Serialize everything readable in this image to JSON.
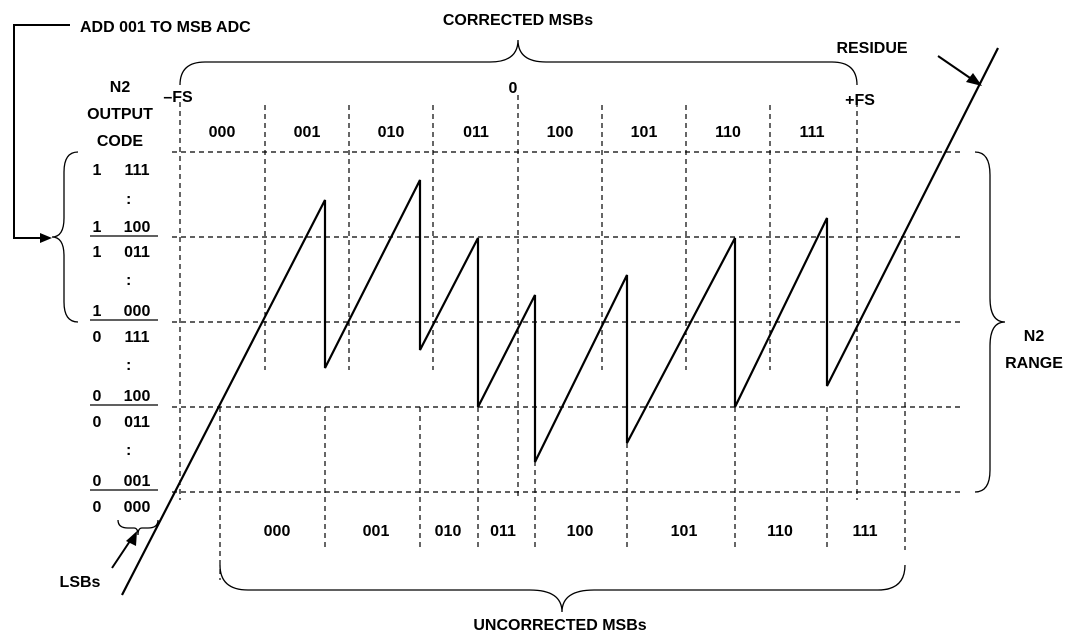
{
  "labels": {
    "add_msb": "ADD 001 TO MSB ADC",
    "corrected_msbs": "CORRECTED MSBs",
    "uncorrected_msbs": "UNCORRECTED MSBs",
    "residue": "RESIDUE",
    "n2_output": "N2",
    "output_line": "OUTPUT",
    "code_line": "CODE",
    "minus_fs": "–FS",
    "zero": "0",
    "plus_fs": "+FS",
    "n2_range_1": "N2",
    "n2_range_2": "RANGE",
    "lsbs": "LSBs"
  },
  "corrected_codes": [
    "000",
    "001",
    "010",
    "011",
    "100",
    "101",
    "110",
    "111"
  ],
  "uncorrected_codes": [
    "000",
    "001",
    "010",
    "011",
    "100",
    "101",
    "110",
    "111"
  ],
  "output_codes": [
    {
      "msb": "1",
      "lsb": "111"
    },
    {
      "msb": "1",
      "lsb": "100"
    },
    {
      "msb": "1",
      "lsb": "011"
    },
    {
      "msb": "1",
      "lsb": "000"
    },
    {
      "msb": "0",
      "lsb": "111"
    },
    {
      "msb": "0",
      "lsb": "100"
    },
    {
      "msb": "0",
      "lsb": "011"
    },
    {
      "msb": "0",
      "lsb": "001"
    },
    {
      "msb": "0",
      "lsb": "000"
    }
  ],
  "ellipsis": ":"
}
